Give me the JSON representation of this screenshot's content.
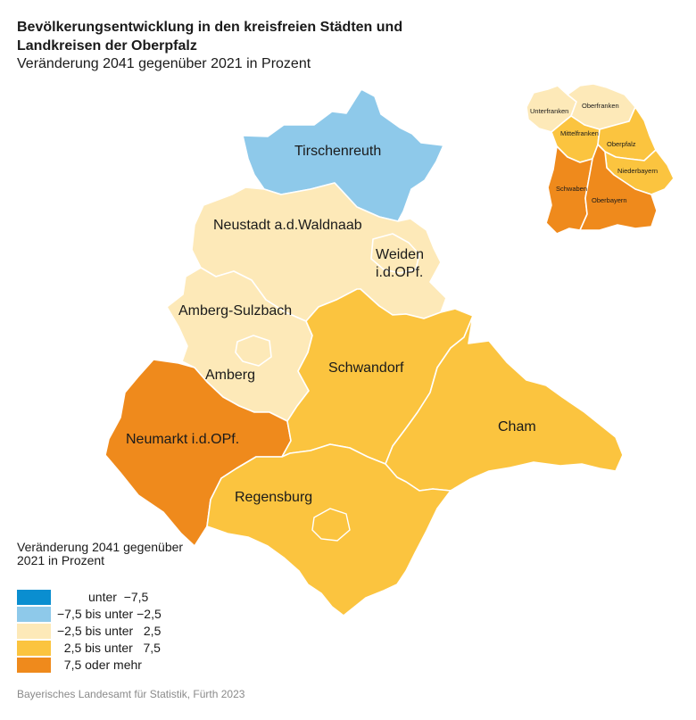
{
  "title": "Bevölkerungsentwicklung in den kreisfreien Städten und Landkreisen der Oberpfalz",
  "subtitle": "Veränderung 2041 gegenüber 2021 in Prozent",
  "colors": {
    "c1": "#0a8ed0",
    "c2": "#8ec9ea",
    "c3": "#fde9b8",
    "c4": "#fbc43f",
    "c5": "#ef8a1c"
  },
  "regions": {
    "tirschenreuth": "Tirschenreuth",
    "neustadt": "Neustadt a.d.Waldnaab",
    "weiden_1": "Weiden",
    "weiden_2": "i.d.OPf.",
    "amberg_sulzbach": "Amberg-Sulzbach",
    "amberg": "Amberg",
    "schwandorf": "Schwandorf",
    "cham": "Cham",
    "neumarkt": "Neumarkt i.d.OPf.",
    "regensburg": "Regensburg"
  },
  "region_class": {
    "tirschenreuth": "−7,5 bis unter −2,5",
    "neustadt": "−2,5 bis unter 2,5",
    "weiden": "−2,5 bis unter 2,5",
    "amberg_sulzbach": "−2,5 bis unter 2,5",
    "amberg": "−2,5 bis unter 2,5",
    "schwandorf": "2,5 bis unter 7,5",
    "cham": "2,5 bis unter 7,5",
    "regensburg": "2,5 bis unter 7,5",
    "neumarkt": "7,5 oder mehr"
  },
  "inset": {
    "unterfranken": "Unterfranken",
    "oberfranken": "Oberfranken",
    "mittelfranken": "Mittelfranken",
    "oberpfalz": "Oberpfalz",
    "niederbayern": "Niederbayern",
    "schwaben": "Schwaben",
    "oberbayern": "Oberbayern"
  },
  "legend": {
    "title": "Veränderung 2041 gegenüber 2021 in Prozent",
    "items": [
      {
        "label": "         unter  −7,5",
        "color": "#0a8ed0"
      },
      {
        "label": "−7,5 bis unter −2,5",
        "color": "#8ec9ea"
      },
      {
        "label": "−2,5 bis unter   2,5",
        "color": "#fde9b8"
      },
      {
        "label": "  2,5 bis unter   7,5",
        "color": "#fbc43f"
      },
      {
        "label": "  7,5 oder mehr",
        "color": "#ef8a1c"
      }
    ]
  },
  "source": "Bayerisches Landesamt für Statistik, Fürth 2023"
}
